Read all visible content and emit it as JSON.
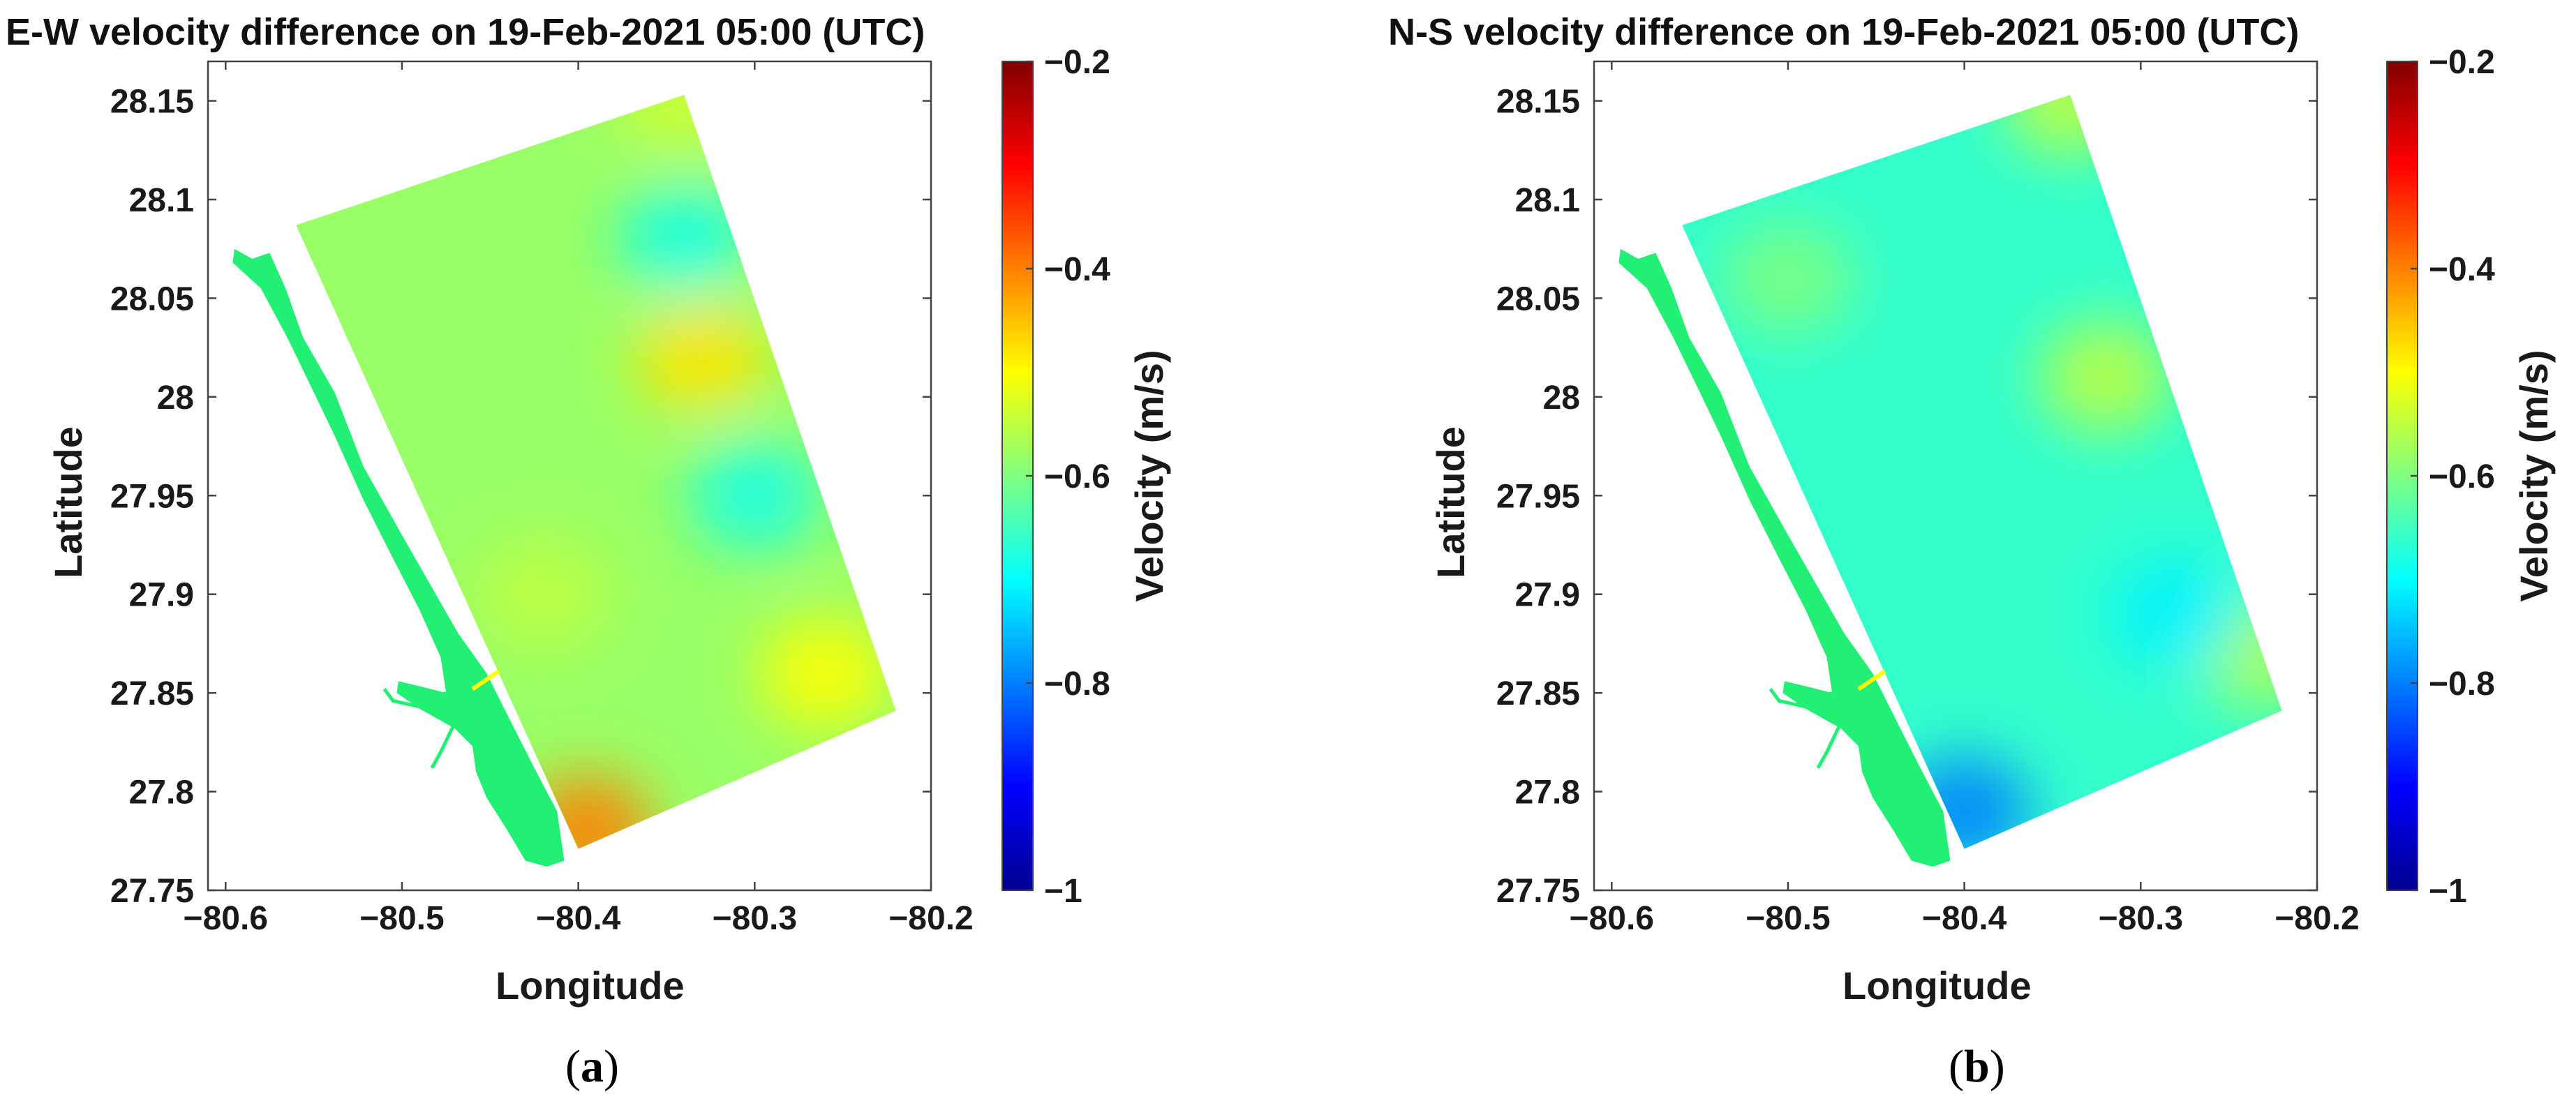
{
  "figure": {
    "panels": [
      {
        "caption_letter": "a",
        "colorbar_label": "Velocity (m/s)"
      },
      {
        "caption_letter": "b",
        "colorbar_label": "Velocity (m/s)"
      }
    ],
    "colormap": "jet",
    "colors": {
      "ocean_fill": "#22f075",
      "background": "#ffffff",
      "axes": "#444444"
    }
  },
  "chart_data": [
    {
      "type": "heatmap",
      "title": "E-W velocity difference on 19-Feb-2021 05:00 (UTC)",
      "xlabel": "Longitude",
      "ylabel": "Latitude",
      "xlim": [
        -80.61,
        -80.2
      ],
      "ylim": [
        27.75,
        28.17
      ],
      "xticks": [
        -80.6,
        -80.5,
        -80.4,
        -80.3,
        -80.2
      ],
      "xtick_labels": [
        "−80.6",
        "−80.5",
        "−80.4",
        "−80.3",
        "−80.2"
      ],
      "yticks": [
        27.75,
        27.8,
        27.85,
        27.9,
        27.95,
        28.0,
        28.05,
        28.1,
        28.15
      ],
      "ytick_labels": [
        "27.75",
        "27.8",
        "27.85",
        "27.9",
        "27.95",
        "28",
        "28.05",
        "28.1",
        "28.15"
      ],
      "colorbar": {
        "label": "Velocity (m/s)",
        "range": [
          -1.0,
          -0.2
        ],
        "ticks": [
          -1.0,
          -0.8,
          -0.6,
          -0.4,
          -0.2
        ],
        "tick_labels": [
          "−1",
          "−0.8",
          "−0.6",
          "−0.4",
          "−0.2"
        ]
      },
      "base_value": -0.58,
      "anomalies": [
        {
          "feature": "north-corner",
          "lon": -80.34,
          "lat": 28.15,
          "value": -0.54
        },
        {
          "feature": "northeast-edge",
          "lon": -80.33,
          "lat": 28.02,
          "value": -0.48
        },
        {
          "feature": "east-edge-cool",
          "lon": -80.3,
          "lat": 27.95,
          "value": -0.68
        },
        {
          "feature": "northeast-cool",
          "lon": -80.34,
          "lat": 28.08,
          "value": -0.68
        },
        {
          "feature": "southeast-warm",
          "lon": -80.26,
          "lat": 27.86,
          "value": -0.5
        },
        {
          "feature": "south-tip",
          "lon": -80.395,
          "lat": 27.78,
          "value": -0.4
        },
        {
          "feature": "central-band",
          "lon": -80.42,
          "lat": 27.9,
          "value": -0.55
        },
        {
          "feature": "inlet",
          "lon": -80.455,
          "lat": 27.853,
          "value": -0.5
        }
      ]
    },
    {
      "type": "heatmap",
      "title": "N-S velocity difference on 19-Feb-2021 05:00 (UTC)",
      "xlabel": "Longitude",
      "ylabel": "Latitude",
      "xlim": [
        -80.61,
        -80.2
      ],
      "ylim": [
        27.75,
        28.17
      ],
      "xticks": [
        -80.6,
        -80.5,
        -80.4,
        -80.3,
        -80.2
      ],
      "xtick_labels": [
        "−80.6",
        "−80.5",
        "−80.4",
        "−80.3",
        "−80.2"
      ],
      "yticks": [
        27.75,
        27.8,
        27.85,
        27.9,
        27.95,
        28.0,
        28.05,
        28.1,
        28.15
      ],
      "ytick_labels": [
        "27.75",
        "27.8",
        "27.85",
        "27.9",
        "27.95",
        "28",
        "28.05",
        "28.1",
        "28.15"
      ],
      "colorbar": {
        "label": "Velocity (m/s)",
        "range": [
          -1.0,
          -0.2
        ],
        "ticks": [
          -1.0,
          -0.8,
          -0.6,
          -0.4,
          -0.2
        ],
        "tick_labels": [
          "−1",
          "−0.8",
          "−0.6",
          "−0.4",
          "−0.2"
        ]
      },
      "base_value": -0.66,
      "anomalies": [
        {
          "feature": "north-corner",
          "lon": -80.34,
          "lat": 28.15,
          "value": -0.55
        },
        {
          "feature": "northeast-edge",
          "lon": -80.32,
          "lat": 28.01,
          "value": -0.55
        },
        {
          "feature": "southeast-edge",
          "lon": -80.23,
          "lat": 27.87,
          "value": -0.56
        },
        {
          "feature": "low-center",
          "lon": -80.28,
          "lat": 27.89,
          "value": -0.71
        },
        {
          "feature": "southwest-tip",
          "lon": -80.4,
          "lat": 27.79,
          "value": -0.8
        },
        {
          "feature": "north-strip",
          "lon": -80.5,
          "lat": 28.06,
          "value": -0.6
        },
        {
          "feature": "inlet",
          "lon": -80.455,
          "lat": 27.853,
          "value": -0.5
        }
      ]
    }
  ]
}
